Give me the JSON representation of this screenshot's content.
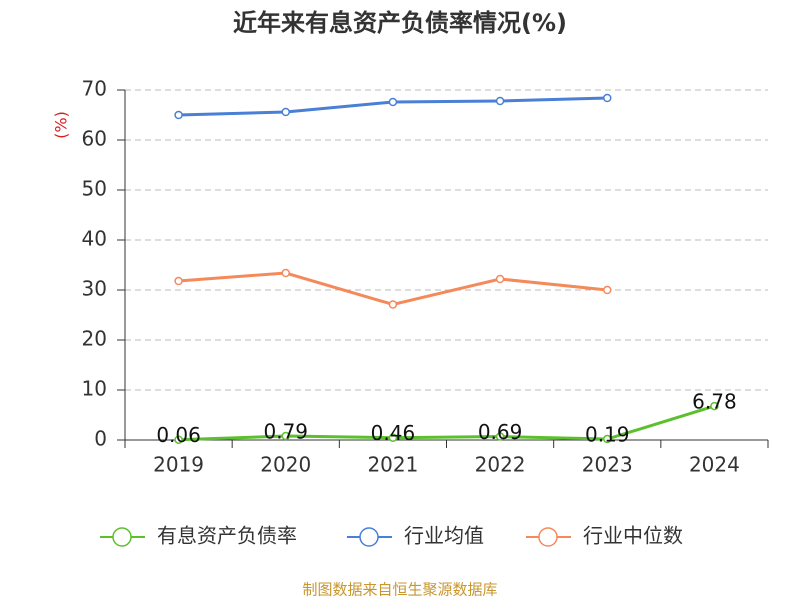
{
  "chart_data": {
    "type": "line",
    "title": "近年来有息资产负债率情况(%)",
    "y_label": "(%)",
    "categories": [
      "2019",
      "2020",
      "2021",
      "2022",
      "2023",
      "2024"
    ],
    "series": [
      {
        "name": "有息资产负债率",
        "color": "#5cc02e",
        "values": [
          0.06,
          0.79,
          0.46,
          0.69,
          0.19,
          6.78
        ],
        "show_labels": true
      },
      {
        "name": "行业均值",
        "color": "#4a7fd6",
        "values": [
          65.0,
          65.6,
          67.6,
          67.8,
          68.4,
          null
        ],
        "show_labels": false
      },
      {
        "name": "行业中位数",
        "color": "#f48a5a",
        "values": [
          31.8,
          33.4,
          27.1,
          32.2,
          30.0,
          null
        ],
        "show_labels": false
      }
    ],
    "ylim": [
      0,
      70
    ],
    "yticks": [
      0,
      10,
      20,
      30,
      40,
      50,
      60,
      70
    ],
    "grid": true,
    "legend": "bottom",
    "footer": "制图数据来自恒生聚源数据库"
  }
}
